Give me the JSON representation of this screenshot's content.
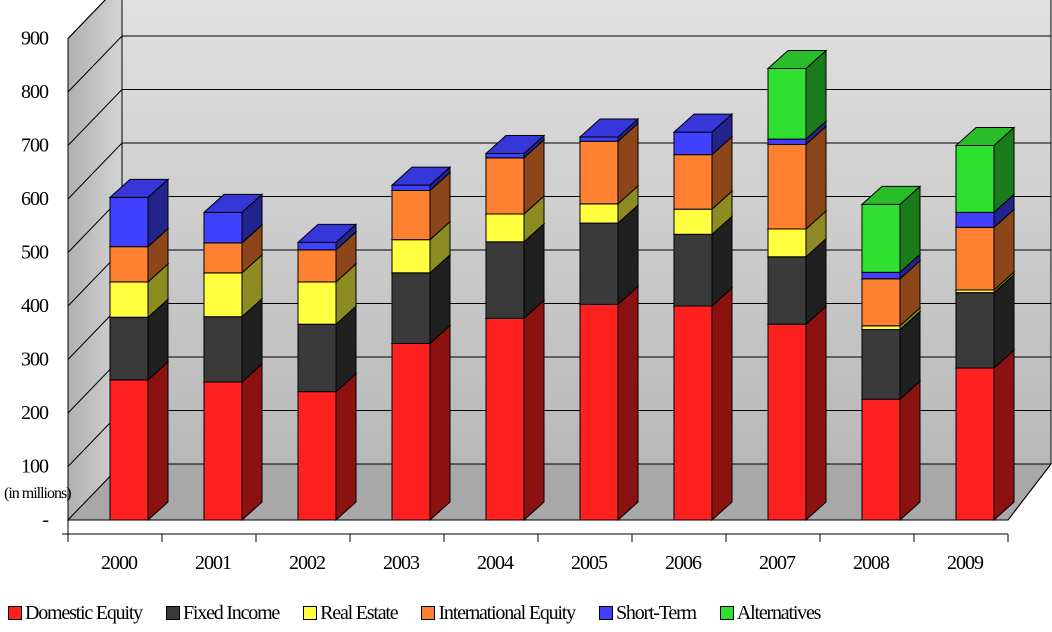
{
  "chart_data": {
    "type": "bar",
    "stacked": true,
    "three_d": true,
    "title": "",
    "xlabel": "",
    "ylabel": "(in millions)",
    "ylim": [
      0,
      900
    ],
    "yticks": [
      0,
      100,
      200,
      300,
      400,
      500,
      600,
      700,
      800,
      900
    ],
    "ytick_labels": [
      "-",
      "100",
      "200",
      "300",
      "400",
      "500",
      "600",
      "700",
      "800",
      "900"
    ],
    "grid": true,
    "legend_position": "bottom",
    "categories": [
      "2000",
      "2001",
      "2002",
      "2003",
      "2004",
      "2005",
      "2006",
      "2007",
      "2008",
      "2009"
    ],
    "series": [
      {
        "name": "Domestic Equity",
        "color": "#ff2020",
        "values": [
          262,
          258,
          240,
          330,
          377,
          403,
          400,
          366,
          226,
          284
        ]
      },
      {
        "name": "Fixed Income",
        "color": "#3a3a3a",
        "values": [
          117,
          122,
          126,
          132,
          143,
          152,
          134,
          126,
          130,
          141
        ]
      },
      {
        "name": "Real Estate",
        "color": "#ffff40",
        "values": [
          66,
          82,
          79,
          62,
          52,
          36,
          47,
          52,
          7,
          5
        ]
      },
      {
        "name": "International Equity",
        "color": "#ff8030",
        "values": [
          66,
          56,
          60,
          92,
          105,
          117,
          102,
          158,
          88,
          117
        ]
      },
      {
        "name": "Short-Term",
        "color": "#4040ff",
        "values": [
          92,
          57,
          14,
          10,
          8,
          8,
          42,
          10,
          12,
          28
        ]
      },
      {
        "name": "Alternatives",
        "color": "#30e030",
        "values": [
          0,
          0,
          0,
          0,
          0,
          0,
          0,
          132,
          127,
          125
        ]
      }
    ]
  }
}
